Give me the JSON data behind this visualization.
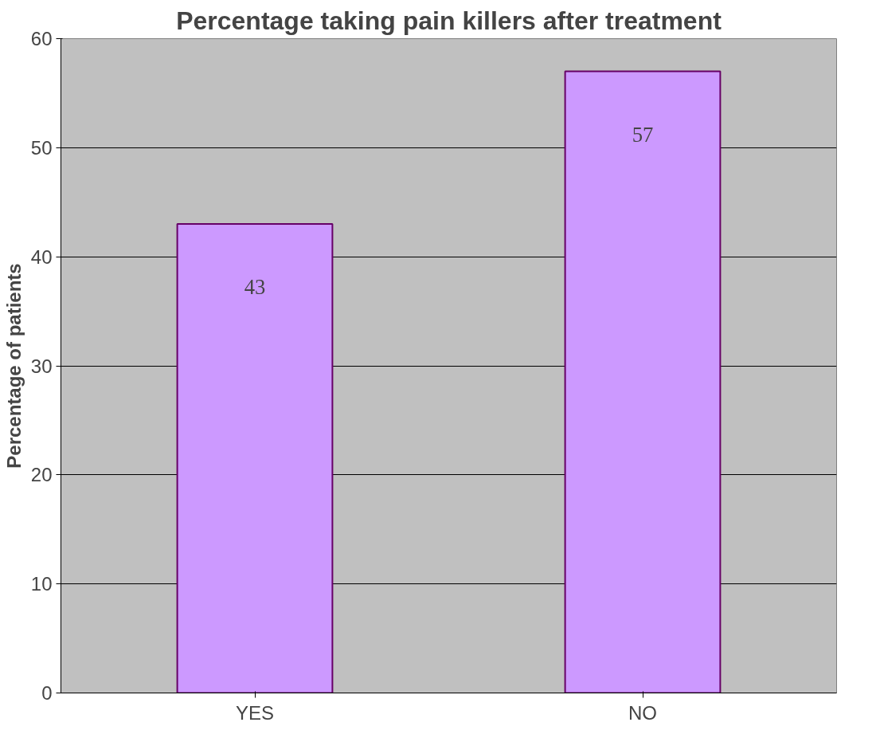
{
  "chart_data": {
    "type": "bar",
    "title": "Percentage taking pain killers after treatment",
    "ylabel": "Percentage of patients",
    "categories": [
      "YES",
      "NO"
    ],
    "values": [
      43,
      57
    ],
    "color": "#cc99ff",
    "ylim": [
      0,
      60
    ],
    "yticks": [
      0,
      10,
      20,
      30,
      40,
      50,
      60
    ],
    "grid": "y",
    "data_labels": true
  }
}
